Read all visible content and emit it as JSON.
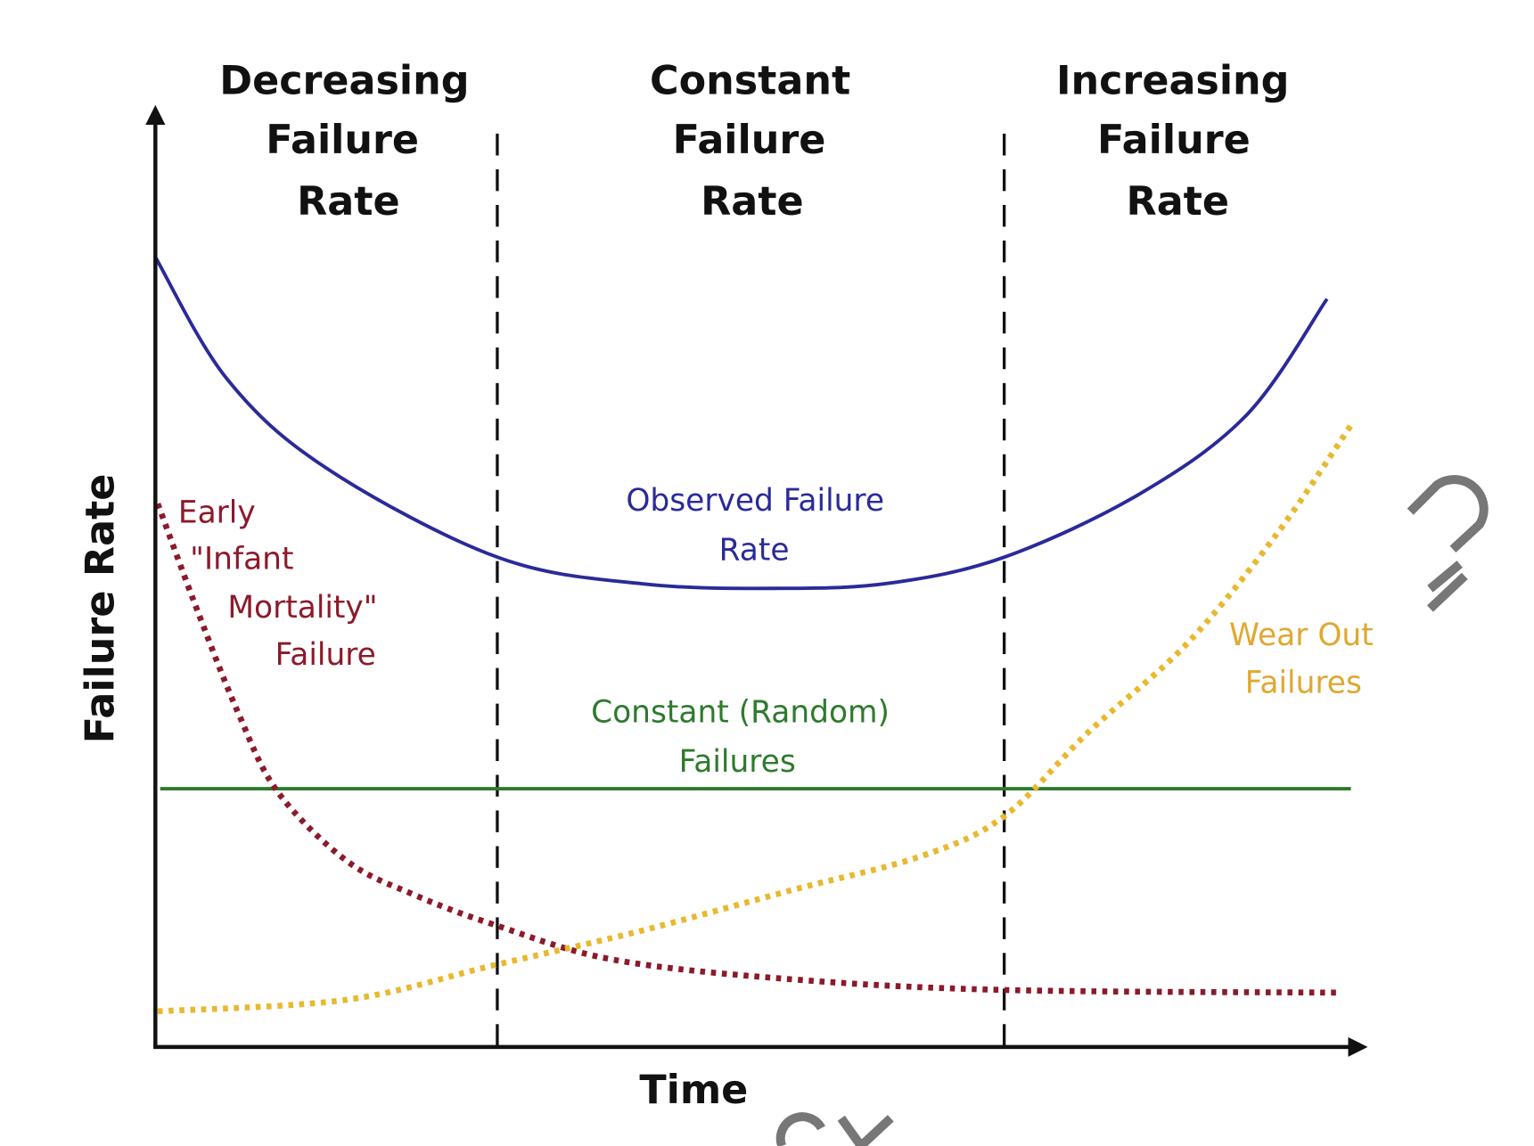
{
  "chart_data": {
    "type": "line",
    "title": "",
    "xlabel": "Time",
    "ylabel": "Failure Rate",
    "xlim": [
      0,
      100
    ],
    "ylim": [
      0,
      100
    ],
    "grid": false,
    "regions": [
      {
        "lines": [
          "Decreasing",
          "Failure",
          "Rate"
        ],
        "x_range": [
          0,
          28.6
        ]
      },
      {
        "lines": [
          "Constant",
          "Failure",
          "Rate"
        ],
        "x_range": [
          28.6,
          71
        ]
      },
      {
        "lines": [
          "Increasing",
          "Failure",
          "Rate"
        ],
        "x_range": [
          71,
          100
        ]
      }
    ],
    "dividers": [
      28.6,
      71
    ],
    "series": [
      {
        "name": "Observed Failure Rate",
        "label_lines": [
          "Observed Failure",
          "Rate"
        ],
        "color": "#2a2a9a",
        "style": "solid",
        "x": [
          0,
          6,
          14.3,
          28.6,
          40.8,
          52.4,
          61.5,
          71,
          82.2,
          91.3,
          98
        ],
        "y": [
          88.7,
          75,
          65,
          55,
          52,
          51.5,
          52.1,
          55,
          62,
          71,
          84
        ]
      },
      {
        "name": "Constant (Random) Failures",
        "label_lines": [
          "Constant (Random)",
          "Failures"
        ],
        "color": "#2e7a2e",
        "style": "solid",
        "x": [
          0.4,
          100
        ],
        "y": [
          29,
          29
        ]
      },
      {
        "name": "Early \"Infant Mortality\" Failure",
        "label_lines": [
          "Early",
          "\"Infant",
          "Mortality\"",
          "Failure"
        ],
        "color": "#8b1a2a",
        "style": "dotted",
        "x": [
          0.2,
          3.6,
          6.9,
          10.2,
          16,
          21.8,
          28.4,
          38.3,
          53.2,
          71,
          98.8
        ],
        "y": [
          61,
          48.7,
          37.6,
          28.7,
          20.9,
          17,
          13.7,
          9.8,
          7.6,
          6.4,
          6.1
        ]
      },
      {
        "name": "Wear Out Failures",
        "label_lines": [
          "Wear Out",
          "Failures"
        ],
        "color": "#e8b830",
        "style": "dotted",
        "x": [
          0.2,
          16,
          28.4,
          40.8,
          53.2,
          64,
          71,
          78,
          86.3,
          93.8,
          100
        ],
        "y": [
          4,
          5.3,
          9.2,
          13.1,
          17.6,
          21.4,
          25.9,
          35.3,
          45.3,
          57.6,
          69.8
        ]
      }
    ]
  },
  "watermark": "SAMPLE/COPY watermark fragments"
}
